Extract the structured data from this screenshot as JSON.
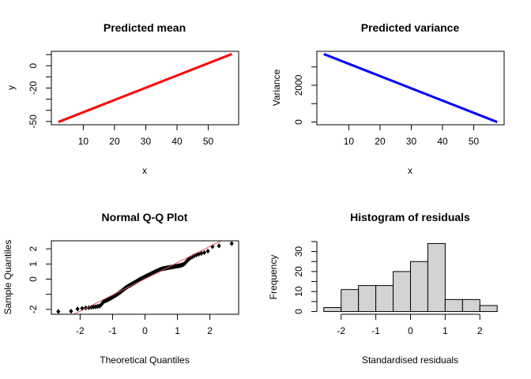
{
  "figure": {
    "background": "#ffffff"
  },
  "chart_data": [
    {
      "type": "line",
      "title": "Predicted mean",
      "xlabel": "x",
      "ylabel": "y",
      "color": "#ff0000",
      "box": true,
      "x": [
        2,
        57.5
      ],
      "y": [
        -50.5,
        10.5
      ],
      "xticks": [
        10,
        20,
        30,
        40,
        50
      ],
      "xtick_labels": [
        "10",
        "20",
        "30",
        "40",
        "50"
      ],
      "yticks": [
        -50,
        -40,
        -30,
        -20,
        -10,
        0,
        10
      ],
      "ytick_labels": [
        "-50",
        "",
        "",
        "-20",
        "",
        "0",
        ""
      ]
    },
    {
      "type": "line",
      "title": "Predicted variance",
      "xlabel": "x",
      "ylabel": "Variance",
      "color": "#0000ff",
      "box": true,
      "x": [
        2,
        57.5
      ],
      "y": [
        3700,
        0
      ],
      "xticks": [
        10,
        20,
        30,
        40,
        50
      ],
      "xtick_labels": [
        "10",
        "20",
        "30",
        "40",
        "50"
      ],
      "yticks": [
        0,
        1000,
        2000,
        3000
      ],
      "ytick_labels": [
        "0",
        "",
        "2000",
        ""
      ]
    },
    {
      "type": "scatter",
      "title": "Normal Q-Q Plot",
      "xlabel": "Theoretical Quantiles",
      "ylabel": "Sample Quantiles",
      "point_color": "#000000",
      "line_color": "#DF536B",
      "box": true,
      "sample_quantiles": [
        -2.14,
        -2.12,
        -1.97,
        -1.93,
        -1.9,
        -1.88,
        -1.86,
        -1.84,
        -1.82,
        -1.8,
        -1.78,
        -1.72,
        -1.6,
        -1.48,
        -1.45,
        -1.41,
        -1.37,
        -1.33,
        -1.29,
        -1.25,
        -1.21,
        -1.17,
        -1.13,
        -1.09,
        -1.05,
        -1.02,
        -0.98,
        -0.94,
        -0.9,
        -0.86,
        -0.82,
        -0.78,
        -0.74,
        -0.7,
        -0.66,
        -0.62,
        -0.58,
        -0.55,
        -0.52,
        -0.49,
        -0.46,
        -0.44,
        -0.41,
        -0.39,
        -0.36,
        -0.34,
        -0.31,
        -0.29,
        -0.26,
        -0.24,
        -0.21,
        -0.19,
        -0.16,
        -0.14,
        -0.11,
        -0.09,
        -0.06,
        -0.04,
        -0.01,
        0.01,
        0.03,
        0.05,
        0.07,
        0.09,
        0.11,
        0.13,
        0.15,
        0.17,
        0.19,
        0.21,
        0.23,
        0.25,
        0.27,
        0.29,
        0.31,
        0.33,
        0.35,
        0.37,
        0.39,
        0.41,
        0.43,
        0.45,
        0.47,
        0.49,
        0.51,
        0.53,
        0.55,
        0.57,
        0.59,
        0.61,
        0.63,
        0.65,
        0.67,
        0.68,
        0.69,
        0.7,
        0.71,
        0.72,
        0.73,
        0.74,
        0.75,
        0.76,
        0.77,
        0.78,
        0.79,
        0.8,
        0.81,
        0.82,
        0.83,
        0.84,
        0.85,
        0.86,
        0.87,
        0.88,
        0.9,
        0.92,
        0.95,
        0.98,
        1.05,
        1.15,
        1.25,
        1.35,
        1.42,
        1.48,
        1.55,
        1.6,
        1.65,
        1.7,
        1.75,
        1.85,
        2.15,
        2.2,
        2.35
      ],
      "xticks": [
        -2,
        -1,
        0,
        1,
        2
      ],
      "xtick_labels": [
        "-2",
        "-1",
        "0",
        "1",
        "2"
      ],
      "yticks": [
        -2,
        -1,
        0,
        1,
        2
      ],
      "ytick_labels": [
        "-2",
        "",
        "0",
        "1",
        "2"
      ]
    },
    {
      "type": "bar",
      "title": "Histogram of residuals",
      "xlabel": "Standardised residuals",
      "ylabel": "Frequency",
      "fill": "#D3D3D3",
      "box": false,
      "breaks": [
        -2.5,
        -2,
        -1.5,
        -1,
        -0.5,
        0,
        0.5,
        1,
        1.5,
        2,
        2.5
      ],
      "counts": [
        2,
        11,
        13,
        13,
        20,
        25,
        34,
        6,
        6,
        3
      ],
      "xticks": [
        -2,
        -1,
        0,
        1,
        2
      ],
      "xtick_labels": [
        "-2",
        "-1",
        "0",
        "1",
        "2"
      ],
      "yticks": [
        0,
        5,
        10,
        15,
        20,
        25,
        30,
        35
      ],
      "ytick_labels": [
        "0",
        "",
        "10",
        "",
        "20",
        "",
        "30",
        ""
      ]
    }
  ]
}
